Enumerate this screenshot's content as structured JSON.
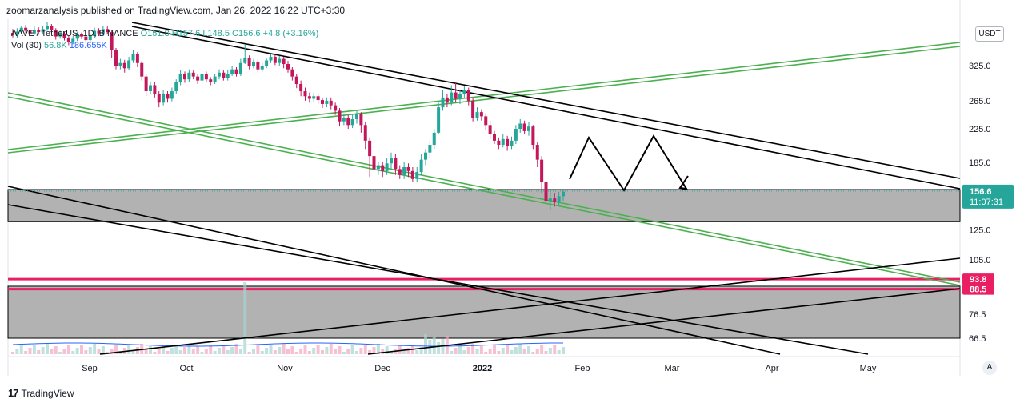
{
  "header": {
    "publish_line": "zoomarzanalysis published on TradingView.com, Jan 26, 2022 16:22 UTC+3:30"
  },
  "legend": {
    "symbol": "AAVE / TetherUS, 1D, BINANCE",
    "o": "O151.8",
    "h": "H157.6",
    "l": "L148.5",
    "c": "C156.6",
    "change": "+4.8 (+3.16%)",
    "vol_label": "Vol (30)",
    "vol_value1": "56.8K",
    "vol_value2": "186.655K"
  },
  "currency": "USDT",
  "auto_button": "A",
  "footer": {
    "brand": "TradingView"
  },
  "colors": {
    "up": "#26a69a",
    "down": "#c2185b",
    "green_line": "#4caf50",
    "black_line": "#000000",
    "red_level": "#e91e63",
    "zone": "#b2b2b2"
  },
  "chart_data": {
    "type": "candlestick",
    "scale": "log",
    "price_ticks": [
      325.0,
      265.0,
      225.0,
      185.0,
      125.0,
      105.0,
      76.5,
      66.5
    ],
    "time_ticks": [
      "Sep",
      "Oct",
      "Nov",
      "Dec",
      "2022",
      "Feb",
      "Mar",
      "Apr",
      "May"
    ],
    "last_price": {
      "value": "156.6",
      "countdown": "11:07:31"
    },
    "levels": [
      {
        "value": "93.8",
        "color": "#e91e63"
      },
      {
        "value": "88.5",
        "color": "#e91e63"
      }
    ],
    "zones": [
      {
        "from": 131,
        "to": 158
      },
      {
        "from": 66.5,
        "to": 90
      }
    ],
    "candles": [
      [
        393,
        388,
        402,
        383
      ],
      [
        388,
        396,
        404,
        381
      ],
      [
        396,
        405,
        410,
        390
      ],
      [
        405,
        398,
        412,
        392
      ],
      [
        398,
        392,
        404,
        386
      ],
      [
        392,
        400,
        408,
        388
      ],
      [
        400,
        395,
        406,
        389
      ],
      [
        395,
        402,
        409,
        391
      ],
      [
        402,
        410,
        418,
        398
      ],
      [
        410,
        400,
        414,
        394
      ],
      [
        400,
        385,
        404,
        378
      ],
      [
        385,
        392,
        398,
        380
      ],
      [
        392,
        381,
        396,
        376
      ],
      [
        381,
        372,
        386,
        366
      ],
      [
        372,
        380,
        386,
        368
      ],
      [
        380,
        390,
        395,
        375
      ],
      [
        390,
        385,
        394,
        379
      ],
      [
        385,
        377,
        390,
        371
      ],
      [
        377,
        386,
        392,
        372
      ],
      [
        386,
        398,
        405,
        382
      ],
      [
        398,
        392,
        404,
        386
      ],
      [
        392,
        402,
        410,
        388
      ],
      [
        402,
        395,
        408,
        390
      ],
      [
        395,
        355,
        400,
        340
      ],
      [
        355,
        325,
        360,
        318
      ],
      [
        325,
        330,
        338,
        318
      ],
      [
        330,
        320,
        336,
        312
      ],
      [
        320,
        335,
        342,
        316
      ],
      [
        335,
        348,
        356,
        330
      ],
      [
        348,
        330,
        352,
        322
      ],
      [
        330,
        305,
        334,
        298
      ],
      [
        305,
        280,
        310,
        272
      ],
      [
        280,
        290,
        296,
        275
      ],
      [
        290,
        275,
        295,
        270
      ],
      [
        275,
        262,
        280,
        255
      ],
      [
        262,
        275,
        282,
        258
      ],
      [
        275,
        268,
        280,
        262
      ],
      [
        268,
        280,
        286,
        264
      ],
      [
        280,
        295,
        300,
        276
      ],
      [
        295,
        310,
        316,
        290
      ],
      [
        310,
        300,
        314,
        294
      ],
      [
        300,
        312,
        318,
        296
      ],
      [
        312,
        305,
        316,
        300
      ],
      [
        305,
        298,
        310,
        292
      ],
      [
        298,
        310,
        314,
        294
      ],
      [
        310,
        300,
        314,
        296
      ],
      [
        300,
        295,
        304,
        290
      ],
      [
        295,
        305,
        310,
        292
      ],
      [
        305,
        312,
        318,
        300
      ],
      [
        312,
        302,
        316,
        298
      ],
      [
        302,
        310,
        316,
        298
      ],
      [
        310,
        318,
        324,
        306
      ],
      [
        318,
        310,
        322,
        305
      ],
      [
        310,
        330,
        338,
        306
      ],
      [
        330,
        340,
        368,
        328
      ],
      [
        340,
        325,
        345,
        318
      ],
      [
        325,
        332,
        338,
        320
      ],
      [
        332,
        318,
        336,
        312
      ],
      [
        318,
        325,
        330,
        314
      ],
      [
        325,
        335,
        340,
        320
      ],
      [
        335,
        342,
        348,
        330
      ],
      [
        342,
        330,
        346,
        326
      ],
      [
        330,
        338,
        344,
        325
      ],
      [
        338,
        328,
        342,
        320
      ],
      [
        328,
        318,
        334,
        312
      ],
      [
        318,
        305,
        322,
        298
      ],
      [
        305,
        292,
        310,
        285
      ],
      [
        292,
        280,
        298,
        272
      ],
      [
        280,
        272,
        286,
        265
      ],
      [
        272,
        268,
        278,
        262
      ],
      [
        268,
        272,
        278,
        264
      ],
      [
        272,
        266,
        276,
        260
      ],
      [
        266,
        260,
        270,
        254
      ],
      [
        260,
        265,
        270,
        255
      ],
      [
        265,
        258,
        270,
        252
      ],
      [
        258,
        250,
        262,
        244
      ],
      [
        250,
        235,
        254,
        228
      ],
      [
        235,
        240,
        246,
        230
      ],
      [
        240,
        230,
        244,
        225
      ],
      [
        230,
        238,
        244,
        226
      ],
      [
        238,
        245,
        250,
        232
      ],
      [
        245,
        230,
        248,
        220
      ],
      [
        230,
        210,
        234,
        200
      ],
      [
        210,
        192,
        214,
        170
      ],
      [
        192,
        178,
        196,
        170
      ],
      [
        178,
        182,
        186,
        172
      ],
      [
        182,
        176,
        186,
        170
      ],
      [
        176,
        184,
        190,
        172
      ],
      [
        184,
        190,
        196,
        178
      ],
      [
        190,
        178,
        194,
        172
      ],
      [
        178,
        172,
        182,
        168
      ],
      [
        172,
        180,
        186,
        168
      ],
      [
        180,
        176,
        184,
        170
      ],
      [
        176,
        168,
        180,
        165
      ],
      [
        168,
        175,
        180,
        165
      ],
      [
        175,
        188,
        194,
        172
      ],
      [
        188,
        196,
        200,
        182
      ],
      [
        196,
        205,
        210,
        190
      ],
      [
        205,
        220,
        225,
        200
      ],
      [
        220,
        255,
        262,
        218
      ],
      [
        255,
        270,
        282,
        250
      ],
      [
        270,
        262,
        276,
        255
      ],
      [
        262,
        278,
        290,
        258
      ],
      [
        278,
        268,
        295,
        262
      ],
      [
        268,
        275,
        282,
        260
      ],
      [
        275,
        282,
        288,
        270
      ],
      [
        282,
        265,
        286,
        258
      ],
      [
        265,
        240,
        270,
        235
      ],
      [
        240,
        248,
        255,
        236
      ],
      [
        248,
        242,
        252,
        236
      ],
      [
        242,
        230,
        246,
        224
      ],
      [
        230,
        218,
        236,
        212
      ],
      [
        218,
        210,
        222,
        206
      ],
      [
        210,
        205,
        214,
        200
      ],
      [
        205,
        212,
        218,
        202
      ],
      [
        212,
        204,
        216,
        198
      ],
      [
        204,
        210,
        215,
        200
      ],
      [
        210,
        225,
        230,
        206
      ],
      [
        225,
        232,
        238,
        220
      ],
      [
        232,
        222,
        236,
        218
      ],
      [
        222,
        228,
        234,
        216
      ],
      [
        228,
        205,
        230,
        200
      ],
      [
        205,
        188,
        208,
        180
      ],
      [
        188,
        165,
        192,
        155
      ],
      [
        165,
        148,
        170,
        137
      ],
      [
        148,
        150,
        158,
        140
      ],
      [
        150,
        147,
        155,
        143
      ],
      [
        147,
        152,
        156,
        144
      ],
      [
        152,
        156,
        158,
        148
      ]
    ],
    "drawings": {
      "green_channel_up": [
        [
          10,
          187,
          1200,
          53
        ],
        [
          10,
          191,
          1200,
          58
        ]
      ],
      "green_channel_down": [
        [
          10,
          116,
          1200,
          353
        ],
        [
          10,
          121,
          1200,
          357
        ]
      ],
      "black_channel_upper": [
        [
          165,
          28,
          1200,
          223
        ],
        [
          165,
          33,
          1200,
          236
        ]
      ],
      "black_lines_lower": [
        [
          10,
          233,
          975,
          443
        ],
        [
          10,
          256,
          1085,
          443
        ]
      ],
      "black_lines_up": [
        [
          125,
          443,
          1200,
          323
        ],
        [
          460,
          443,
          1200,
          361
        ]
      ],
      "zigzag_path": [
        [
          712,
          224
        ],
        [
          736,
          172
        ],
        [
          780,
          238
        ],
        [
          817,
          170
        ],
        [
          858,
          236
        ],
        [
          850,
          235
        ],
        [
          860,
          220
        ]
      ]
    }
  }
}
